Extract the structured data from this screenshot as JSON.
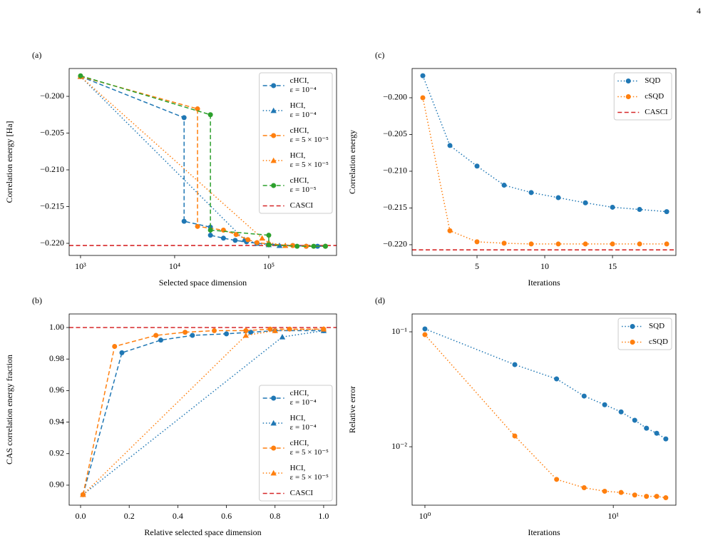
{
  "page_number": "4",
  "chart_data": [
    {
      "type": "line",
      "panel_label": "(a)",
      "xlabel": "Selected space dimension",
      "ylabel": "Correlation energy [Ha]",
      "xscale": "log",
      "yscale": "linear",
      "xlim": [
        757,
        525000
      ],
      "ylim": [
        -0.22165,
        -0.19621
      ],
      "xticks": [
        {
          "value": 1000,
          "label": "10³"
        },
        {
          "value": 10000,
          "label": "10⁴"
        },
        {
          "value": 100000,
          "label": "10⁵"
        }
      ],
      "yticks": [
        {
          "value": -0.2,
          "label": "−0.200"
        },
        {
          "value": -0.205,
          "label": "−0.205"
        },
        {
          "value": -0.21,
          "label": "−0.210"
        },
        {
          "value": -0.215,
          "label": "−0.215"
        },
        {
          "value": -0.22,
          "label": "−0.220"
        }
      ],
      "legend": "upper right",
      "series": [
        {
          "name": [
            "cHCI,",
            "ε = 10⁻⁴"
          ],
          "color": "#1f77b4",
          "linestyle": "dashed",
          "marker": "circle",
          "x": [
            1000,
            12600,
            12600,
            24000,
            24000,
            33000,
            44000,
            58000,
            75000,
            100000,
            180000,
            250000,
            330000,
            400000
          ],
          "values": [
            -0.1973,
            -0.2029,
            -0.217,
            -0.2178,
            -0.2189,
            -0.2193,
            -0.2196,
            -0.2198,
            -0.22,
            -0.2201,
            -0.2203,
            -0.2204,
            -0.2204,
            -0.2204
          ]
        },
        {
          "name": [
            "HCI,",
            "ε = 10⁻⁴"
          ],
          "color": "#1f77b4",
          "linestyle": "dotted",
          "marker": "triangle",
          "x": [
            1000,
            55000,
            75000,
            100000,
            130000
          ],
          "values": [
            -0.1973,
            -0.2195,
            -0.22,
            -0.2202,
            -0.2203
          ]
        },
        {
          "name": [
            "cHCI,",
            "ε = 5 × 10⁻⁵"
          ],
          "color": "#ff7f0e",
          "linestyle": "dashed",
          "marker": "circle",
          "x": [
            1000,
            17500,
            17500,
            33000,
            45000,
            60000,
            75000,
            100000,
            180000,
            250000,
            400000
          ],
          "values": [
            -0.1973,
            -0.2017,
            -0.2177,
            -0.2182,
            -0.2188,
            -0.2195,
            -0.2199,
            -0.2201,
            -0.2203,
            -0.2204,
            -0.2204
          ]
        },
        {
          "name": [
            "HCI,",
            "ε = 5 × 10⁻⁵"
          ],
          "color": "#ff7f0e",
          "linestyle": "dotted",
          "marker": "triangle",
          "x": [
            1000,
            85000,
            100000,
            150000
          ],
          "values": [
            -0.1973,
            -0.2193,
            -0.2199,
            -0.2203
          ]
        },
        {
          "name": [
            "cHCI,",
            "ε = 10⁻⁵"
          ],
          "color": "#2ca02c",
          "linestyle": "dashed",
          "marker": "circle",
          "x": [
            1000,
            24000,
            24000,
            100000,
            100000,
            200000,
            300000,
            400000
          ],
          "values": [
            -0.1972,
            -0.2025,
            -0.2182,
            -0.2189,
            -0.2202,
            -0.2204,
            -0.2204,
            -0.2204
          ]
        }
      ],
      "reference": {
        "name": [
          "CASCI"
        ],
        "color": "#d62728",
        "value": -0.2203
      }
    },
    {
      "type": "line",
      "panel_label": "(b)",
      "xlabel": "Relative selected space dimension",
      "ylabel": "CAS correlation energy fraction",
      "xscale": "linear",
      "yscale": "linear",
      "xlim": [
        -0.047,
        1.053
      ],
      "ylim": [
        0.8873,
        1.0086
      ],
      "xticks": [
        {
          "value": 0,
          "label": "0.0"
        },
        0.2,
        0.4,
        0.6,
        0.8,
        {
          "value": 1,
          "label": "1.0"
        }
      ],
      "yticks": [
        {
          "value": 0.9,
          "label": "0.90"
        },
        0.92,
        0.94,
        0.96,
        0.98,
        {
          "value": 1,
          "label": "1.00"
        }
      ],
      "legend": "lower right",
      "series": [
        {
          "name": [
            "cHCI,",
            "ε = 10⁻⁴"
          ],
          "color": "#1f77b4",
          "linestyle": "dashed",
          "marker": "circle",
          "x": [
            0.01,
            0.17,
            0.33,
            0.46,
            0.6,
            0.7,
            0.8,
            1.0
          ],
          "values": [
            0.894,
            0.984,
            0.992,
            0.995,
            0.996,
            0.997,
            0.998,
            0.998
          ]
        },
        {
          "name": [
            "HCI,",
            "ε = 10⁻⁴"
          ],
          "color": "#1f77b4",
          "linestyle": "dotted",
          "marker": "triangle",
          "x": [
            0.01,
            0.83,
            1.0
          ],
          "values": [
            0.894,
            0.994,
            0.998
          ]
        },
        {
          "name": [
            "cHCI,",
            "ε = 5 × 10⁻⁵"
          ],
          "color": "#ff7f0e",
          "linestyle": "dashed",
          "marker": "circle",
          "x": [
            0.01,
            0.14,
            0.31,
            0.43,
            0.55,
            0.68,
            0.78,
            0.86,
            1.0
          ],
          "values": [
            0.894,
            0.988,
            0.995,
            0.997,
            0.998,
            0.998,
            0.999,
            0.999,
            0.999
          ]
        },
        {
          "name": [
            "HCI,",
            "ε = 5 × 10⁻⁵"
          ],
          "color": "#ff7f0e",
          "linestyle": "dotted",
          "marker": "triangle",
          "x": [
            0.01,
            0.68,
            0.8,
            1.0
          ],
          "values": [
            0.894,
            0.995,
            0.998,
            0.999
          ]
        }
      ],
      "reference": {
        "name": [
          "CASCI"
        ],
        "color": "#d62728",
        "value": 1
      }
    },
    {
      "type": "line",
      "panel_label": "(c)",
      "xlabel": "Iterations",
      "ylabel": "Correlation energy",
      "xscale": "linear",
      "yscale": "linear",
      "xlim": [
        0.21,
        19.68
      ],
      "ylim": [
        -0.22146,
        -0.19602
      ],
      "xticks": [
        5,
        10,
        15
      ],
      "yticks": [
        {
          "value": -0.2,
          "label": "−0.200"
        },
        {
          "value": -0.205,
          "label": "−0.205"
        },
        {
          "value": -0.21,
          "label": "−0.210"
        },
        {
          "value": -0.215,
          "label": "−0.215"
        },
        {
          "value": -0.22,
          "label": "−0.220"
        }
      ],
      "legend": "upper right",
      "series": [
        {
          "name": [
            "SQD"
          ],
          "color": "#1f77b4",
          "linestyle": "dotted",
          "marker": "circle",
          "x": [
            1,
            3,
            5,
            7,
            9,
            11,
            13,
            15,
            17,
            19
          ],
          "values": [
            -0.197,
            -0.2065,
            -0.2093,
            -0.2119,
            -0.2129,
            -0.2136,
            -0.2143,
            -0.2149,
            -0.2152,
            -0.2155
          ]
        },
        {
          "name": [
            "cSQD"
          ],
          "color": "#ff7f0e",
          "linestyle": "dotted",
          "marker": "circle",
          "x": [
            1,
            3,
            5,
            7,
            9,
            11,
            13,
            15,
            17,
            19
          ],
          "values": [
            -0.2,
            -0.2181,
            -0.2196,
            -0.2198,
            -0.2199,
            -0.2199,
            -0.2199,
            -0.2199,
            -0.2199,
            -0.2199
          ]
        }
      ],
      "reference": {
        "name": [
          "CASCI"
        ],
        "color": "#d62728",
        "value": -0.2207
      }
    },
    {
      "type": "line",
      "panel_label": "(d)",
      "xlabel": "Iterations",
      "ylabel": "Relative error",
      "xscale": "log",
      "yscale": "log",
      "xlim": [
        0.855,
        21.5
      ],
      "ylim": [
        0.0031,
        0.143
      ],
      "xticks": [
        {
          "value": 1,
          "label": "10⁰"
        },
        {
          "value": 10,
          "label": "10¹"
        }
      ],
      "yticks": [
        {
          "value": 0.01,
          "label": "10⁻²"
        },
        {
          "value": 0.1,
          "label": "10⁻¹"
        }
      ],
      "legend": "upper right",
      "series": [
        {
          "name": [
            "SQD"
          ],
          "color": "#1f77b4",
          "linestyle": "dotted",
          "marker": "circle",
          "x": [
            1,
            3,
            5,
            7,
            9,
            11,
            13,
            15,
            17,
            19
          ],
          "values": [
            0.106,
            0.0518,
            0.0389,
            0.0276,
            0.0232,
            0.0201,
            0.017,
            0.0145,
            0.0131,
            0.0117
          ]
        },
        {
          "name": [
            "cSQD"
          ],
          "color": "#ff7f0e",
          "linestyle": "dotted",
          "marker": "circle",
          "x": [
            1,
            3,
            5,
            7,
            9,
            11,
            13,
            15,
            17,
            19
          ],
          "values": [
            0.0944,
            0.0124,
            0.0052,
            0.0044,
            0.0041,
            0.004,
            0.0038,
            0.0037,
            0.0037,
            0.0036
          ]
        }
      ]
    }
  ]
}
